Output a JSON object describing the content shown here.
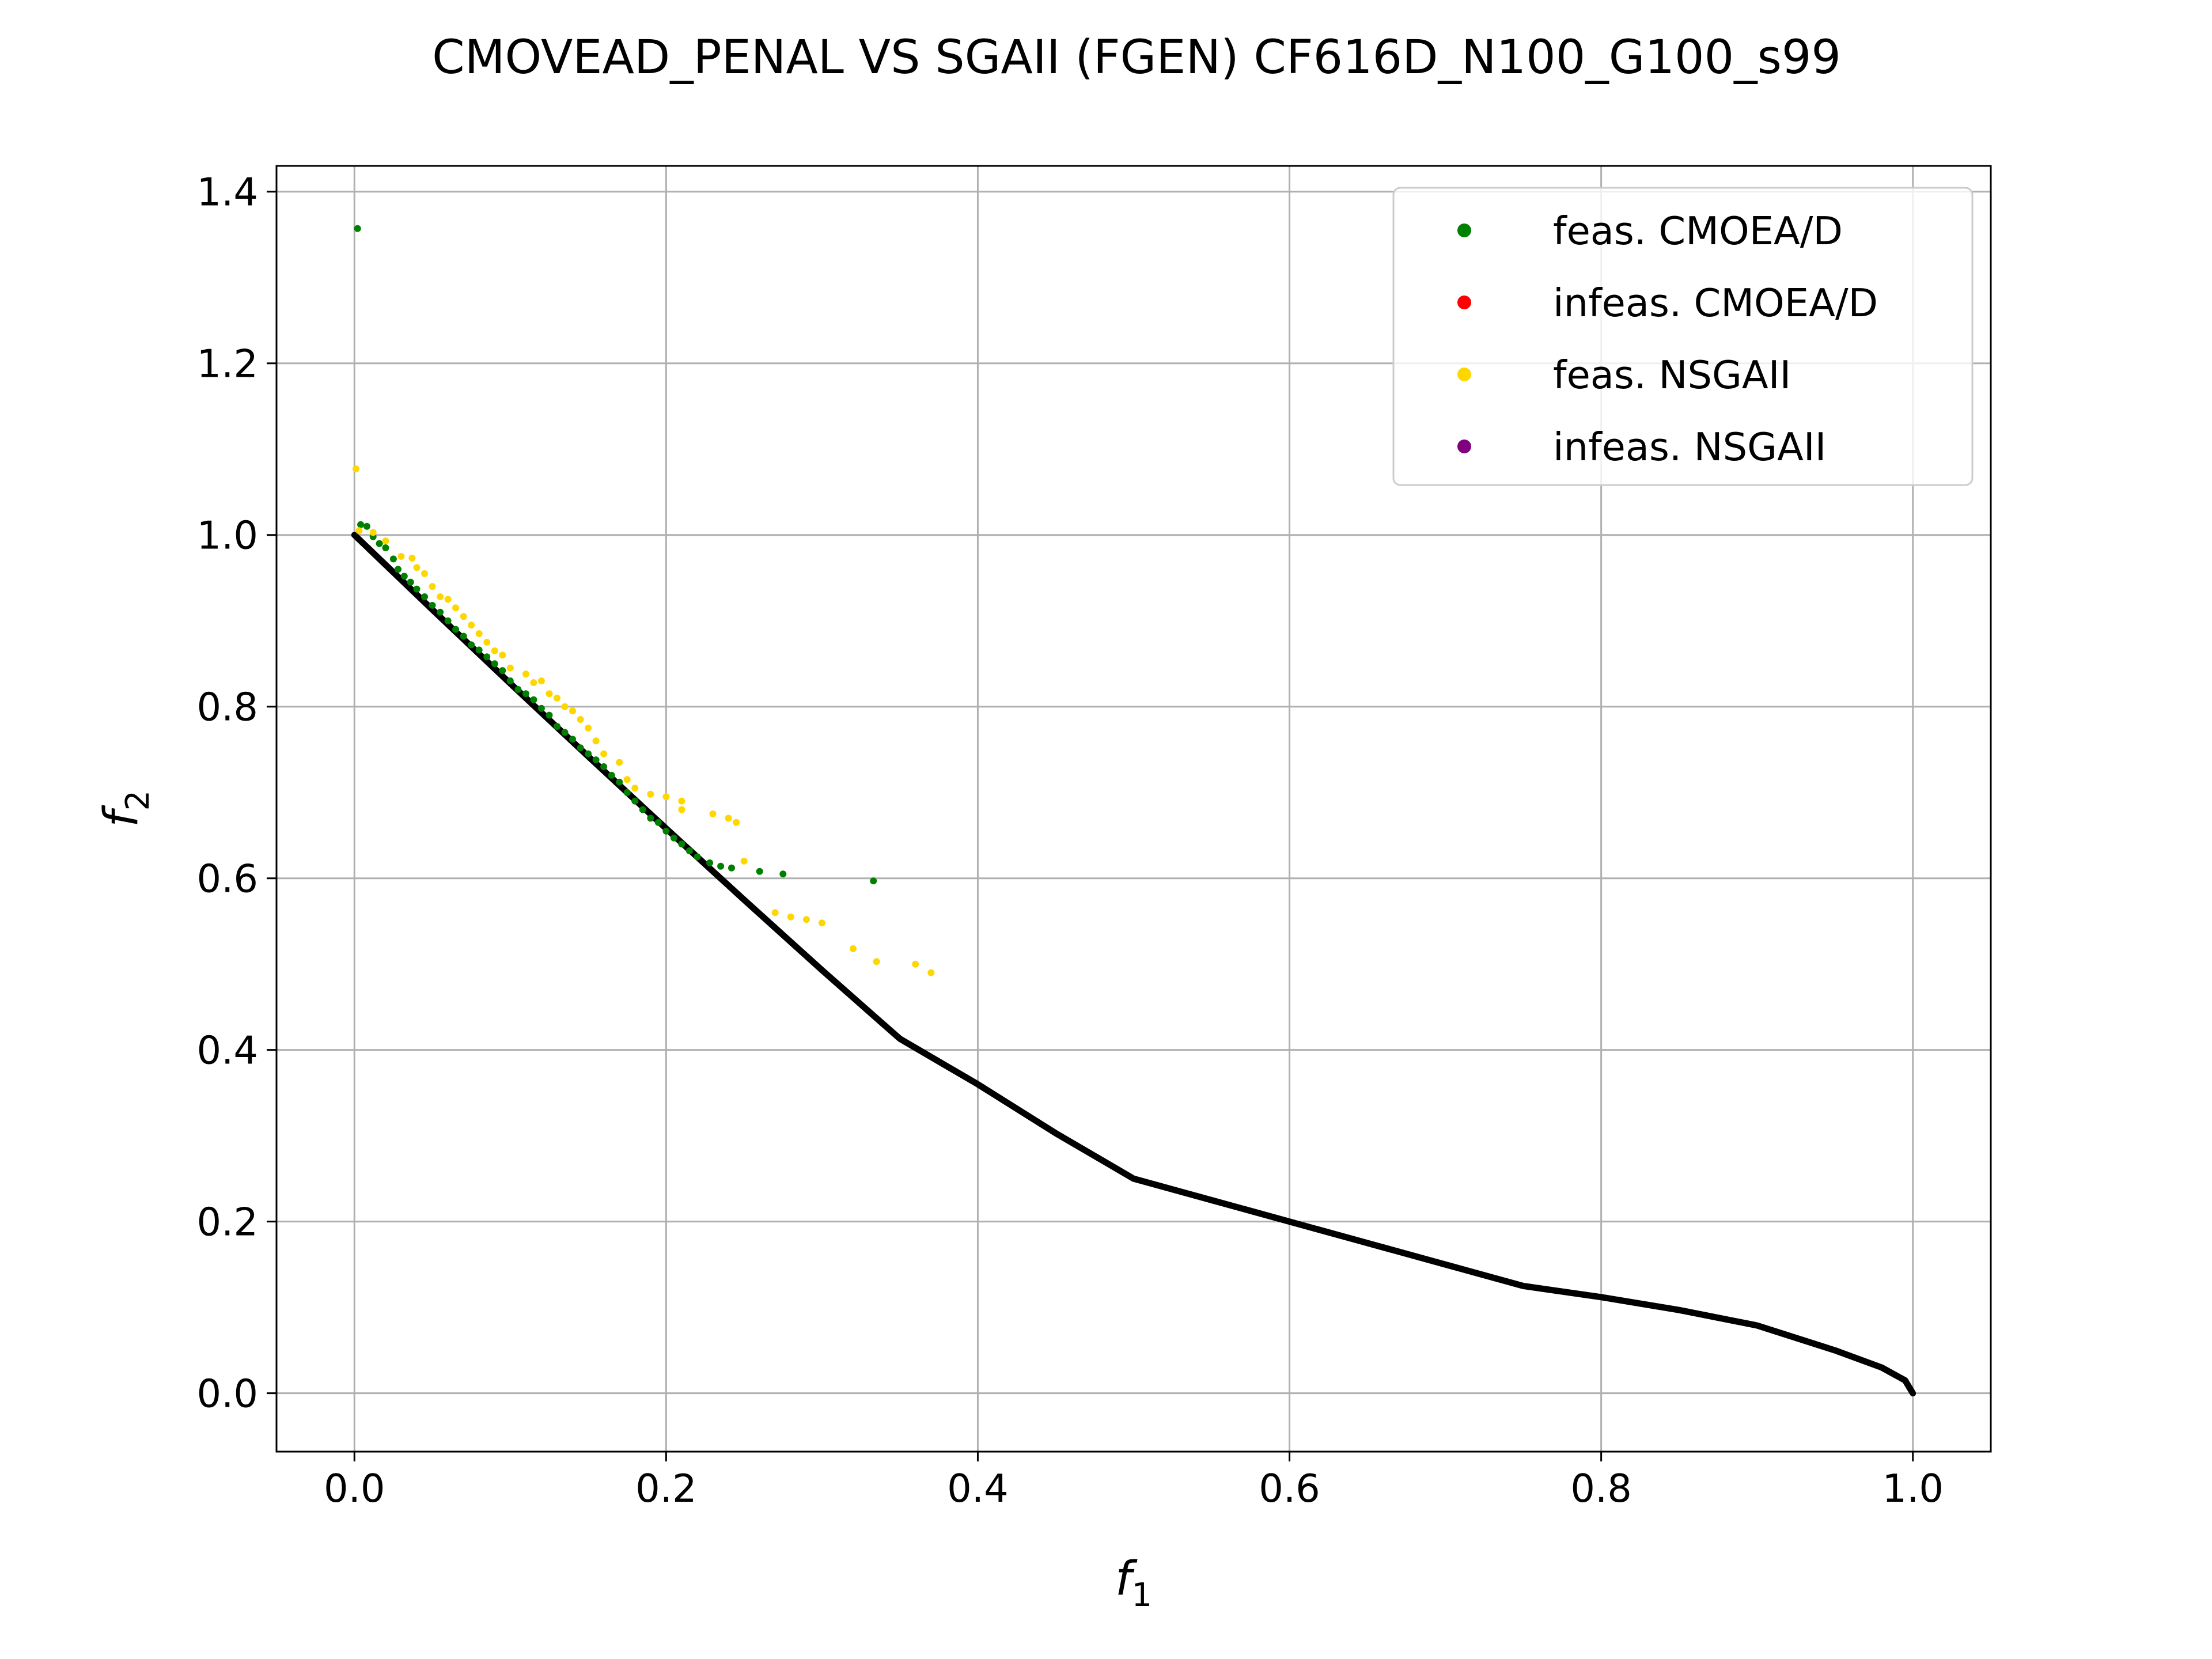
{
  "chart_data": {
    "type": "scatter",
    "title": "CMOVEAD_PENAL VS SGAII (FGEN) CF616D_N100_G100_s99",
    "xlabel": {
      "base": "f",
      "sub": "1"
    },
    "ylabel": {
      "base": "f",
      "sub": "2"
    },
    "xlim": [
      -0.05,
      1.05
    ],
    "ylim": [
      -0.068,
      1.43
    ],
    "x_ticks": [
      0.0,
      0.2,
      0.4,
      0.6,
      0.8,
      1.0
    ],
    "x_tick_labels": [
      "0.0",
      "0.2",
      "0.4",
      "0.6",
      "0.8",
      "1.0"
    ],
    "y_ticks": [
      0.0,
      0.2,
      0.4,
      0.6,
      0.8,
      1.0,
      1.2,
      1.4
    ],
    "y_tick_labels": [
      "0.0",
      "0.2",
      "0.4",
      "0.6",
      "0.8",
      "1.0",
      "1.2",
      "1.4"
    ],
    "grid": true,
    "legend_position": "top-right",
    "pareto_front": {
      "color": "#000000",
      "points": [
        [
          0.0,
          1.0
        ],
        [
          0.05,
          0.913
        ],
        [
          0.1,
          0.827
        ],
        [
          0.15,
          0.742
        ],
        [
          0.2,
          0.658
        ],
        [
          0.25,
          0.575
        ],
        [
          0.3,
          0.493
        ],
        [
          0.35,
          0.413
        ],
        [
          0.4,
          0.36
        ],
        [
          0.45,
          0.303
        ],
        [
          0.5,
          0.25
        ],
        [
          0.55,
          0.225
        ],
        [
          0.6,
          0.2
        ],
        [
          0.65,
          0.175
        ],
        [
          0.7,
          0.15
        ],
        [
          0.75,
          0.125
        ],
        [
          0.8,
          0.112
        ],
        [
          0.85,
          0.097
        ],
        [
          0.9,
          0.079
        ],
        [
          0.95,
          0.05
        ],
        [
          0.98,
          0.03
        ],
        [
          0.995,
          0.015
        ],
        [
          1.0,
          0.0
        ]
      ]
    },
    "series": [
      {
        "name": "feas. CMOEA/D",
        "color": "#008000",
        "points": [
          [
            0.002,
            1.357
          ],
          [
            0.004,
            1.012
          ],
          [
            0.008,
            1.01
          ],
          [
            0.012,
            0.998
          ],
          [
            0.016,
            0.99
          ],
          [
            0.02,
            0.985
          ],
          [
            0.025,
            0.972
          ],
          [
            0.028,
            0.96
          ],
          [
            0.032,
            0.952
          ],
          [
            0.036,
            0.945
          ],
          [
            0.04,
            0.937
          ],
          [
            0.045,
            0.928
          ],
          [
            0.05,
            0.918
          ],
          [
            0.055,
            0.91
          ],
          [
            0.06,
            0.9
          ],
          [
            0.065,
            0.89
          ],
          [
            0.07,
            0.882
          ],
          [
            0.075,
            0.872
          ],
          [
            0.08,
            0.866
          ],
          [
            0.085,
            0.858
          ],
          [
            0.09,
            0.85
          ],
          [
            0.095,
            0.842
          ],
          [
            0.1,
            0.83
          ],
          [
            0.105,
            0.82
          ],
          [
            0.11,
            0.815
          ],
          [
            0.115,
            0.808
          ],
          [
            0.12,
            0.798
          ],
          [
            0.125,
            0.79
          ],
          [
            0.13,
            0.777
          ],
          [
            0.135,
            0.77
          ],
          [
            0.14,
            0.762
          ],
          [
            0.145,
            0.752
          ],
          [
            0.15,
            0.745
          ],
          [
            0.155,
            0.738
          ],
          [
            0.16,
            0.73
          ],
          [
            0.165,
            0.72
          ],
          [
            0.17,
            0.712
          ],
          [
            0.175,
            0.7
          ],
          [
            0.18,
            0.69
          ],
          [
            0.185,
            0.68
          ],
          [
            0.19,
            0.67
          ],
          [
            0.195,
            0.665
          ],
          [
            0.2,
            0.655
          ],
          [
            0.205,
            0.647
          ],
          [
            0.21,
            0.64
          ],
          [
            0.215,
            0.632
          ],
          [
            0.22,
            0.625
          ],
          [
            0.228,
            0.618
          ],
          [
            0.235,
            0.614
          ],
          [
            0.242,
            0.612
          ],
          [
            0.26,
            0.608
          ],
          [
            0.275,
            0.605
          ],
          [
            0.333,
            0.597
          ]
        ]
      },
      {
        "name": "infeas. CMOEA/D",
        "color": "#ff0000",
        "points": []
      },
      {
        "name": "feas. NSGAII",
        "color": "#ffd700",
        "points": [
          [
            0.001,
            1.077
          ],
          [
            0.003,
            1.005
          ],
          [
            0.012,
            1.003
          ],
          [
            0.02,
            0.993
          ],
          [
            0.03,
            0.975
          ],
          [
            0.037,
            0.973
          ],
          [
            0.04,
            0.962
          ],
          [
            0.045,
            0.955
          ],
          [
            0.05,
            0.94
          ],
          [
            0.055,
            0.928
          ],
          [
            0.06,
            0.925
          ],
          [
            0.065,
            0.915
          ],
          [
            0.07,
            0.905
          ],
          [
            0.075,
            0.895
          ],
          [
            0.08,
            0.885
          ],
          [
            0.085,
            0.875
          ],
          [
            0.09,
            0.865
          ],
          [
            0.095,
            0.86
          ],
          [
            0.1,
            0.845
          ],
          [
            0.11,
            0.838
          ],
          [
            0.115,
            0.828
          ],
          [
            0.12,
            0.83
          ],
          [
            0.125,
            0.815
          ],
          [
            0.13,
            0.81
          ],
          [
            0.135,
            0.8
          ],
          [
            0.14,
            0.795
          ],
          [
            0.145,
            0.785
          ],
          [
            0.15,
            0.775
          ],
          [
            0.155,
            0.76
          ],
          [
            0.16,
            0.745
          ],
          [
            0.17,
            0.735
          ],
          [
            0.175,
            0.715
          ],
          [
            0.18,
            0.705
          ],
          [
            0.19,
            0.698
          ],
          [
            0.2,
            0.695
          ],
          [
            0.21,
            0.69
          ],
          [
            0.21,
            0.68
          ],
          [
            0.23,
            0.675
          ],
          [
            0.24,
            0.67
          ],
          [
            0.245,
            0.665
          ],
          [
            0.25,
            0.62
          ],
          [
            0.27,
            0.56
          ],
          [
            0.28,
            0.555
          ],
          [
            0.29,
            0.552
          ],
          [
            0.3,
            0.548
          ],
          [
            0.32,
            0.518
          ],
          [
            0.335,
            0.503
          ],
          [
            0.36,
            0.5
          ],
          [
            0.37,
            0.49
          ]
        ]
      },
      {
        "name": "infeas. NSGAII",
        "color": "#800080",
        "points": []
      }
    ]
  }
}
